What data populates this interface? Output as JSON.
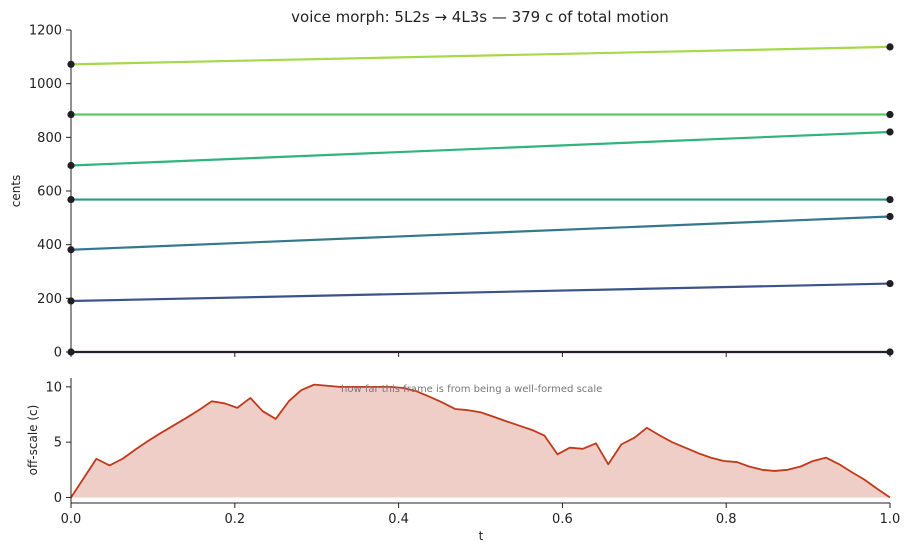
{
  "chart_data": [
    {
      "type": "line",
      "title": "voice morph:  5L2s → 4L3s   —   379 c of total motion",
      "xlabel": "",
      "ylabel": "cents",
      "xlim": [
        0,
        1
      ],
      "ylim": [
        0,
        1200
      ],
      "yticks": [
        0,
        200,
        400,
        600,
        800,
        1000,
        1200
      ],
      "grid": false,
      "series": [
        {
          "x": [
            0,
            1
          ],
          "values": [
            0,
            0
          ],
          "color": "#2a1a33"
        },
        {
          "x": [
            0,
            1
          ],
          "values": [
            190,
            255
          ],
          "color": "#3b528b"
        },
        {
          "x": [
            0,
            1
          ],
          "values": [
            381,
            505
          ],
          "color": "#33788c"
        },
        {
          "x": [
            0,
            1
          ],
          "values": [
            568,
            568
          ],
          "color": "#2a968a"
        },
        {
          "x": [
            0,
            1
          ],
          "values": [
            695,
            820
          ],
          "color": "#2fb47c"
        },
        {
          "x": [
            0,
            1
          ],
          "values": [
            885,
            885
          ],
          "color": "#5ec962"
        },
        {
          "x": [
            0,
            1
          ],
          "values": [
            1072,
            1137
          ],
          "color": "#a5d94a"
        }
      ]
    },
    {
      "type": "area",
      "xlabel": "t",
      "ylabel": "off-scale (c)",
      "xlim": [
        0,
        1
      ],
      "ylim": [
        -0.5,
        10.8
      ],
      "xticks": [
        "0.0",
        "0.2",
        "0.4",
        "0.6",
        "0.8",
        "1.0"
      ],
      "yticks": [
        0,
        5,
        10
      ],
      "annotation": "how far this frame is from being a well-formed scale",
      "line_color": "#c0391b",
      "fill_color": "#f0cec8",
      "x": [
        0,
        0.031,
        0.047,
        0.063,
        0.078,
        0.094,
        0.109,
        0.125,
        0.141,
        0.156,
        0.172,
        0.188,
        0.203,
        0.219,
        0.234,
        0.25,
        0.266,
        0.281,
        0.297,
        0.313,
        0.328,
        0.344,
        0.359,
        0.375,
        0.391,
        0.406,
        0.422,
        0.438,
        0.453,
        0.469,
        0.484,
        0.5,
        0.516,
        0.531,
        0.547,
        0.563,
        0.578,
        0.594,
        0.609,
        0.625,
        0.641,
        0.656,
        0.672,
        0.688,
        0.703,
        0.719,
        0.734,
        0.75,
        0.766,
        0.781,
        0.797,
        0.813,
        0.828,
        0.844,
        0.859,
        0.875,
        0.891,
        0.906,
        0.922,
        0.938,
        0.953,
        0.969,
        0.984,
        1.0
      ],
      "values": [
        0,
        3.5,
        2.9,
        3.5,
        4.3,
        5.1,
        5.8,
        6.5,
        7.2,
        7.9,
        8.7,
        8.5,
        8.1,
        9.0,
        7.8,
        7.1,
        8.7,
        9.7,
        10.2,
        10.1,
        10.0,
        10.0,
        10.0,
        10.0,
        10.0,
        9.9,
        9.6,
        9.1,
        8.6,
        8.0,
        7.9,
        7.7,
        7.3,
        6.9,
        6.5,
        6.1,
        5.6,
        3.9,
        4.5,
        4.4,
        4.9,
        3.0,
        4.8,
        5.4,
        6.3,
        5.6,
        5.0,
        4.5,
        4.0,
        3.6,
        3.3,
        3.2,
        2.8,
        2.5,
        2.4,
        2.5,
        2.8,
        3.3,
        3.6,
        3.0,
        2.3,
        1.6,
        0.8,
        0
      ]
    }
  ]
}
